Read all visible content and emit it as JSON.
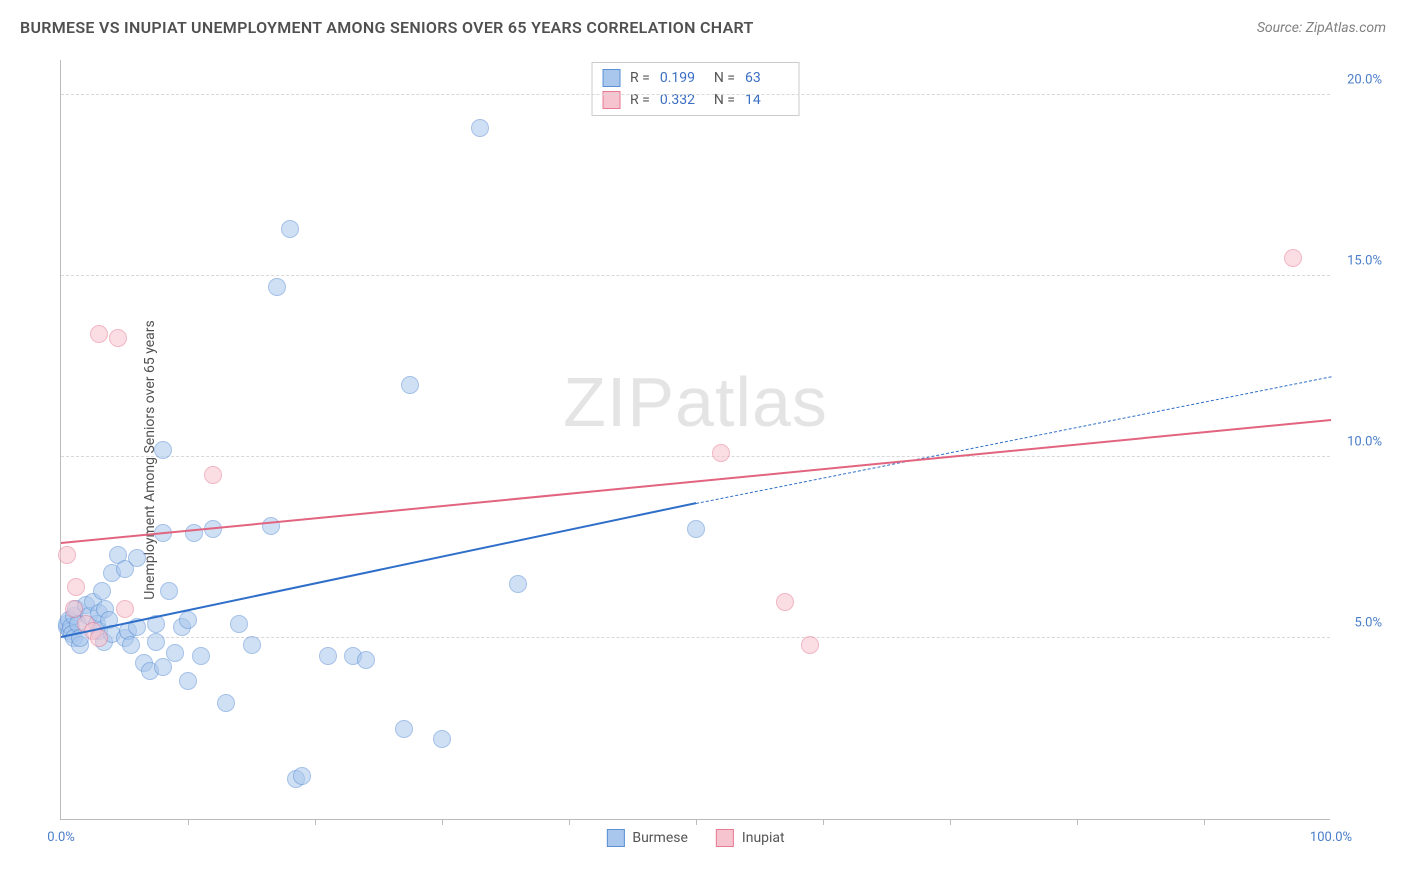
{
  "header": {
    "title": "BURMESE VS INUPIAT UNEMPLOYMENT AMONG SENIORS OVER 65 YEARS CORRELATION CHART",
    "source": "Source: ZipAtlas.com"
  },
  "chart": {
    "type": "scatter",
    "watermark": "ZIPatlas",
    "ylabel": "Unemployment Among Seniors over 65 years",
    "xlim": [
      0,
      100
    ],
    "ylim": [
      0,
      21
    ],
    "xtick_step": 10,
    "ytick_step": 5,
    "x_labels": [
      {
        "v": 0,
        "t": "0.0%"
      },
      {
        "v": 100,
        "t": "100.0%"
      }
    ],
    "y_labels": [
      {
        "v": 5,
        "t": "5.0%"
      },
      {
        "v": 10,
        "t": "10.0%"
      },
      {
        "v": 15,
        "t": "15.0%"
      },
      {
        "v": 20,
        "t": "20.0%"
      }
    ],
    "background_color": "#ffffff",
    "grid_color": "#d8d8d8",
    "axis_color": "#bbbbbb",
    "text_color": "#505050",
    "tick_label_color": "#4a7ec9",
    "marker_radius": 9,
    "marker_opacity": 0.55,
    "series": [
      {
        "name": "Burmese",
        "fill": "#a9c7ec",
        "stroke": "#5b8fd6",
        "line_color": "#2f6fc9",
        "r": 0.199,
        "n": 63,
        "trend": {
          "x1": 0,
          "y1": 5.0,
          "x2": 50,
          "y2": 8.7,
          "extend_x2": 100,
          "extend_y2": 12.2
        },
        "points": [
          [
            0.5,
            5.3
          ],
          [
            0.5,
            5.4
          ],
          [
            0.6,
            5.5
          ],
          [
            0.7,
            5.2
          ],
          [
            0.8,
            5.3
          ],
          [
            0.9,
            5.1
          ],
          [
            1.0,
            5.6
          ],
          [
            1.2,
            5.8
          ],
          [
            1.0,
            5.0
          ],
          [
            1.3,
            5.4
          ],
          [
            1.5,
            4.8
          ],
          [
            1.5,
            5.0
          ],
          [
            2.0,
            5.9
          ],
          [
            2.2,
            5.6
          ],
          [
            2.5,
            6.0
          ],
          [
            2.8,
            5.4
          ],
          [
            3.0,
            5.7
          ],
          [
            3.0,
            5.2
          ],
          [
            3.2,
            6.3
          ],
          [
            3.4,
            4.9
          ],
          [
            3.5,
            5.8
          ],
          [
            3.8,
            5.5
          ],
          [
            4.0,
            5.1
          ],
          [
            4.0,
            6.8
          ],
          [
            4.5,
            7.3
          ],
          [
            5.0,
            5.0
          ],
          [
            5.0,
            6.9
          ],
          [
            5.3,
            5.2
          ],
          [
            5.5,
            4.8
          ],
          [
            6.0,
            5.3
          ],
          [
            6.0,
            7.2
          ],
          [
            6.5,
            4.3
          ],
          [
            7.0,
            4.1
          ],
          [
            7.5,
            4.9
          ],
          [
            7.5,
            5.4
          ],
          [
            8.0,
            4.2
          ],
          [
            8.0,
            10.2
          ],
          [
            8.0,
            7.9
          ],
          [
            8.5,
            6.3
          ],
          [
            9.0,
            4.6
          ],
          [
            9.5,
            5.3
          ],
          [
            10.0,
            3.8
          ],
          [
            10.0,
            5.5
          ],
          [
            10.5,
            7.9
          ],
          [
            11.0,
            4.5
          ],
          [
            12.0,
            8.0
          ],
          [
            13.0,
            3.2
          ],
          [
            14.0,
            5.4
          ],
          [
            15.0,
            4.8
          ],
          [
            16.5,
            8.1
          ],
          [
            17.0,
            14.7
          ],
          [
            18.0,
            16.3
          ],
          [
            18.5,
            1.1
          ],
          [
            19.0,
            1.2
          ],
          [
            21.0,
            4.5
          ],
          [
            23.0,
            4.5
          ],
          [
            24.0,
            4.4
          ],
          [
            27.0,
            2.5
          ],
          [
            27.5,
            12.0
          ],
          [
            30.0,
            2.2
          ],
          [
            33.0,
            19.1
          ],
          [
            36.0,
            6.5
          ],
          [
            50.0,
            8.0
          ]
        ]
      },
      {
        "name": "Inupiat",
        "fill": "#f6c4cf",
        "stroke": "#e77b93",
        "line_color": "#e2647f",
        "r": 0.332,
        "n": 14,
        "trend": {
          "x1": 0,
          "y1": 7.6,
          "x2": 100,
          "y2": 11.0
        },
        "points": [
          [
            0.5,
            7.3
          ],
          [
            1.0,
            5.8
          ],
          [
            1.2,
            6.4
          ],
          [
            2.0,
            5.4
          ],
          [
            2.5,
            5.2
          ],
          [
            3.0,
            5.0
          ],
          [
            3.0,
            13.4
          ],
          [
            4.5,
            13.3
          ],
          [
            5.0,
            5.8
          ],
          [
            12.0,
            9.5
          ],
          [
            52.0,
            10.1
          ],
          [
            57.0,
            6.0
          ],
          [
            59.0,
            4.8
          ],
          [
            97.0,
            15.5
          ]
        ]
      }
    ],
    "stats_legend_labels": {
      "r": "R =",
      "n": "N ="
    },
    "series_legend_title": ""
  }
}
